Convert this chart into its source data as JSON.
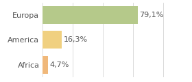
{
  "categories": [
    "Africa",
    "America",
    "Europa"
  ],
  "values": [
    4.7,
    16.3,
    79.1
  ],
  "labels": [
    "4,7%",
    "16,3%",
    "79,1%"
  ],
  "bar_colors": [
    "#f0b87a",
    "#f0d080",
    "#b5c98a"
  ],
  "xlim": [
    0,
    105
  ],
  "background_color": "#ffffff",
  "label_fontsize": 8,
  "tick_fontsize": 8,
  "grid_color": "#cccccc",
  "text_color": "#555555"
}
